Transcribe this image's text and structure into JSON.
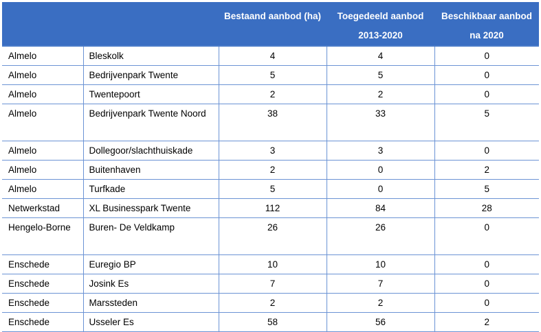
{
  "table": {
    "headers": [
      "",
      "",
      "Bestaand aanbod (ha)",
      "Toegedeeld aanbod 2013-2020",
      "Beschikbaar aanbod na 2020"
    ],
    "rows": [
      {
        "gemeente": "Almelo",
        "locatie": "Bleskolk",
        "bestaand": "4",
        "toegedeeld": "4",
        "beschikbaar": "0"
      },
      {
        "gemeente": "Almelo",
        "locatie": "Bedrijvenpark Twente",
        "bestaand": "5",
        "toegedeeld": "5",
        "beschikbaar": "0"
      },
      {
        "gemeente": "Almelo",
        "locatie": "Twentepoort",
        "bestaand": "2",
        "toegedeeld": "2",
        "beschikbaar": "0"
      },
      {
        "gemeente": "Almelo",
        "locatie": "Bedrijvenpark Twente Noord",
        "bestaand": "38",
        "toegedeeld": "33",
        "beschikbaar": "5"
      },
      {
        "gemeente": "Almelo",
        "locatie": "Dollegoor/slachthuiskade",
        "bestaand": "3",
        "toegedeeld": "3",
        "beschikbaar": "0"
      },
      {
        "gemeente": "Almelo",
        "locatie": "Buitenhaven",
        "bestaand": "2",
        "toegedeeld": "0",
        "beschikbaar": "2"
      },
      {
        "gemeente": "Almelo",
        "locatie": "Turfkade",
        "bestaand": "5",
        "toegedeeld": "0",
        "beschikbaar": "5"
      },
      {
        "gemeente": "Netwerkstad",
        "locatie": "XL Businesspark Twente",
        "bestaand": "112",
        "toegedeeld": "84",
        "beschikbaar": "28"
      },
      {
        "gemeente": "Hengelo-Borne",
        "locatie": "Buren- De Veldkamp",
        "bestaand": "26",
        "toegedeeld": "26",
        "beschikbaar": "0"
      },
      {
        "gemeente": "Enschede",
        "locatie": "Euregio BP",
        "bestaand": "10",
        "toegedeeld": "10",
        "beschikbaar": "0"
      },
      {
        "gemeente": "Enschede",
        "locatie": "Josink Es",
        "bestaand": "7",
        "toegedeeld": "7",
        "beschikbaar": "0"
      },
      {
        "gemeente": "Enschede",
        "locatie": "Marssteden",
        "bestaand": "2",
        "toegedeeld": "2",
        "beschikbaar": "0"
      },
      {
        "gemeente": "Enschede",
        "locatie": "Usseler Es",
        "bestaand": "58",
        "toegedeeld": "56",
        "beschikbaar": "2"
      }
    ]
  }
}
